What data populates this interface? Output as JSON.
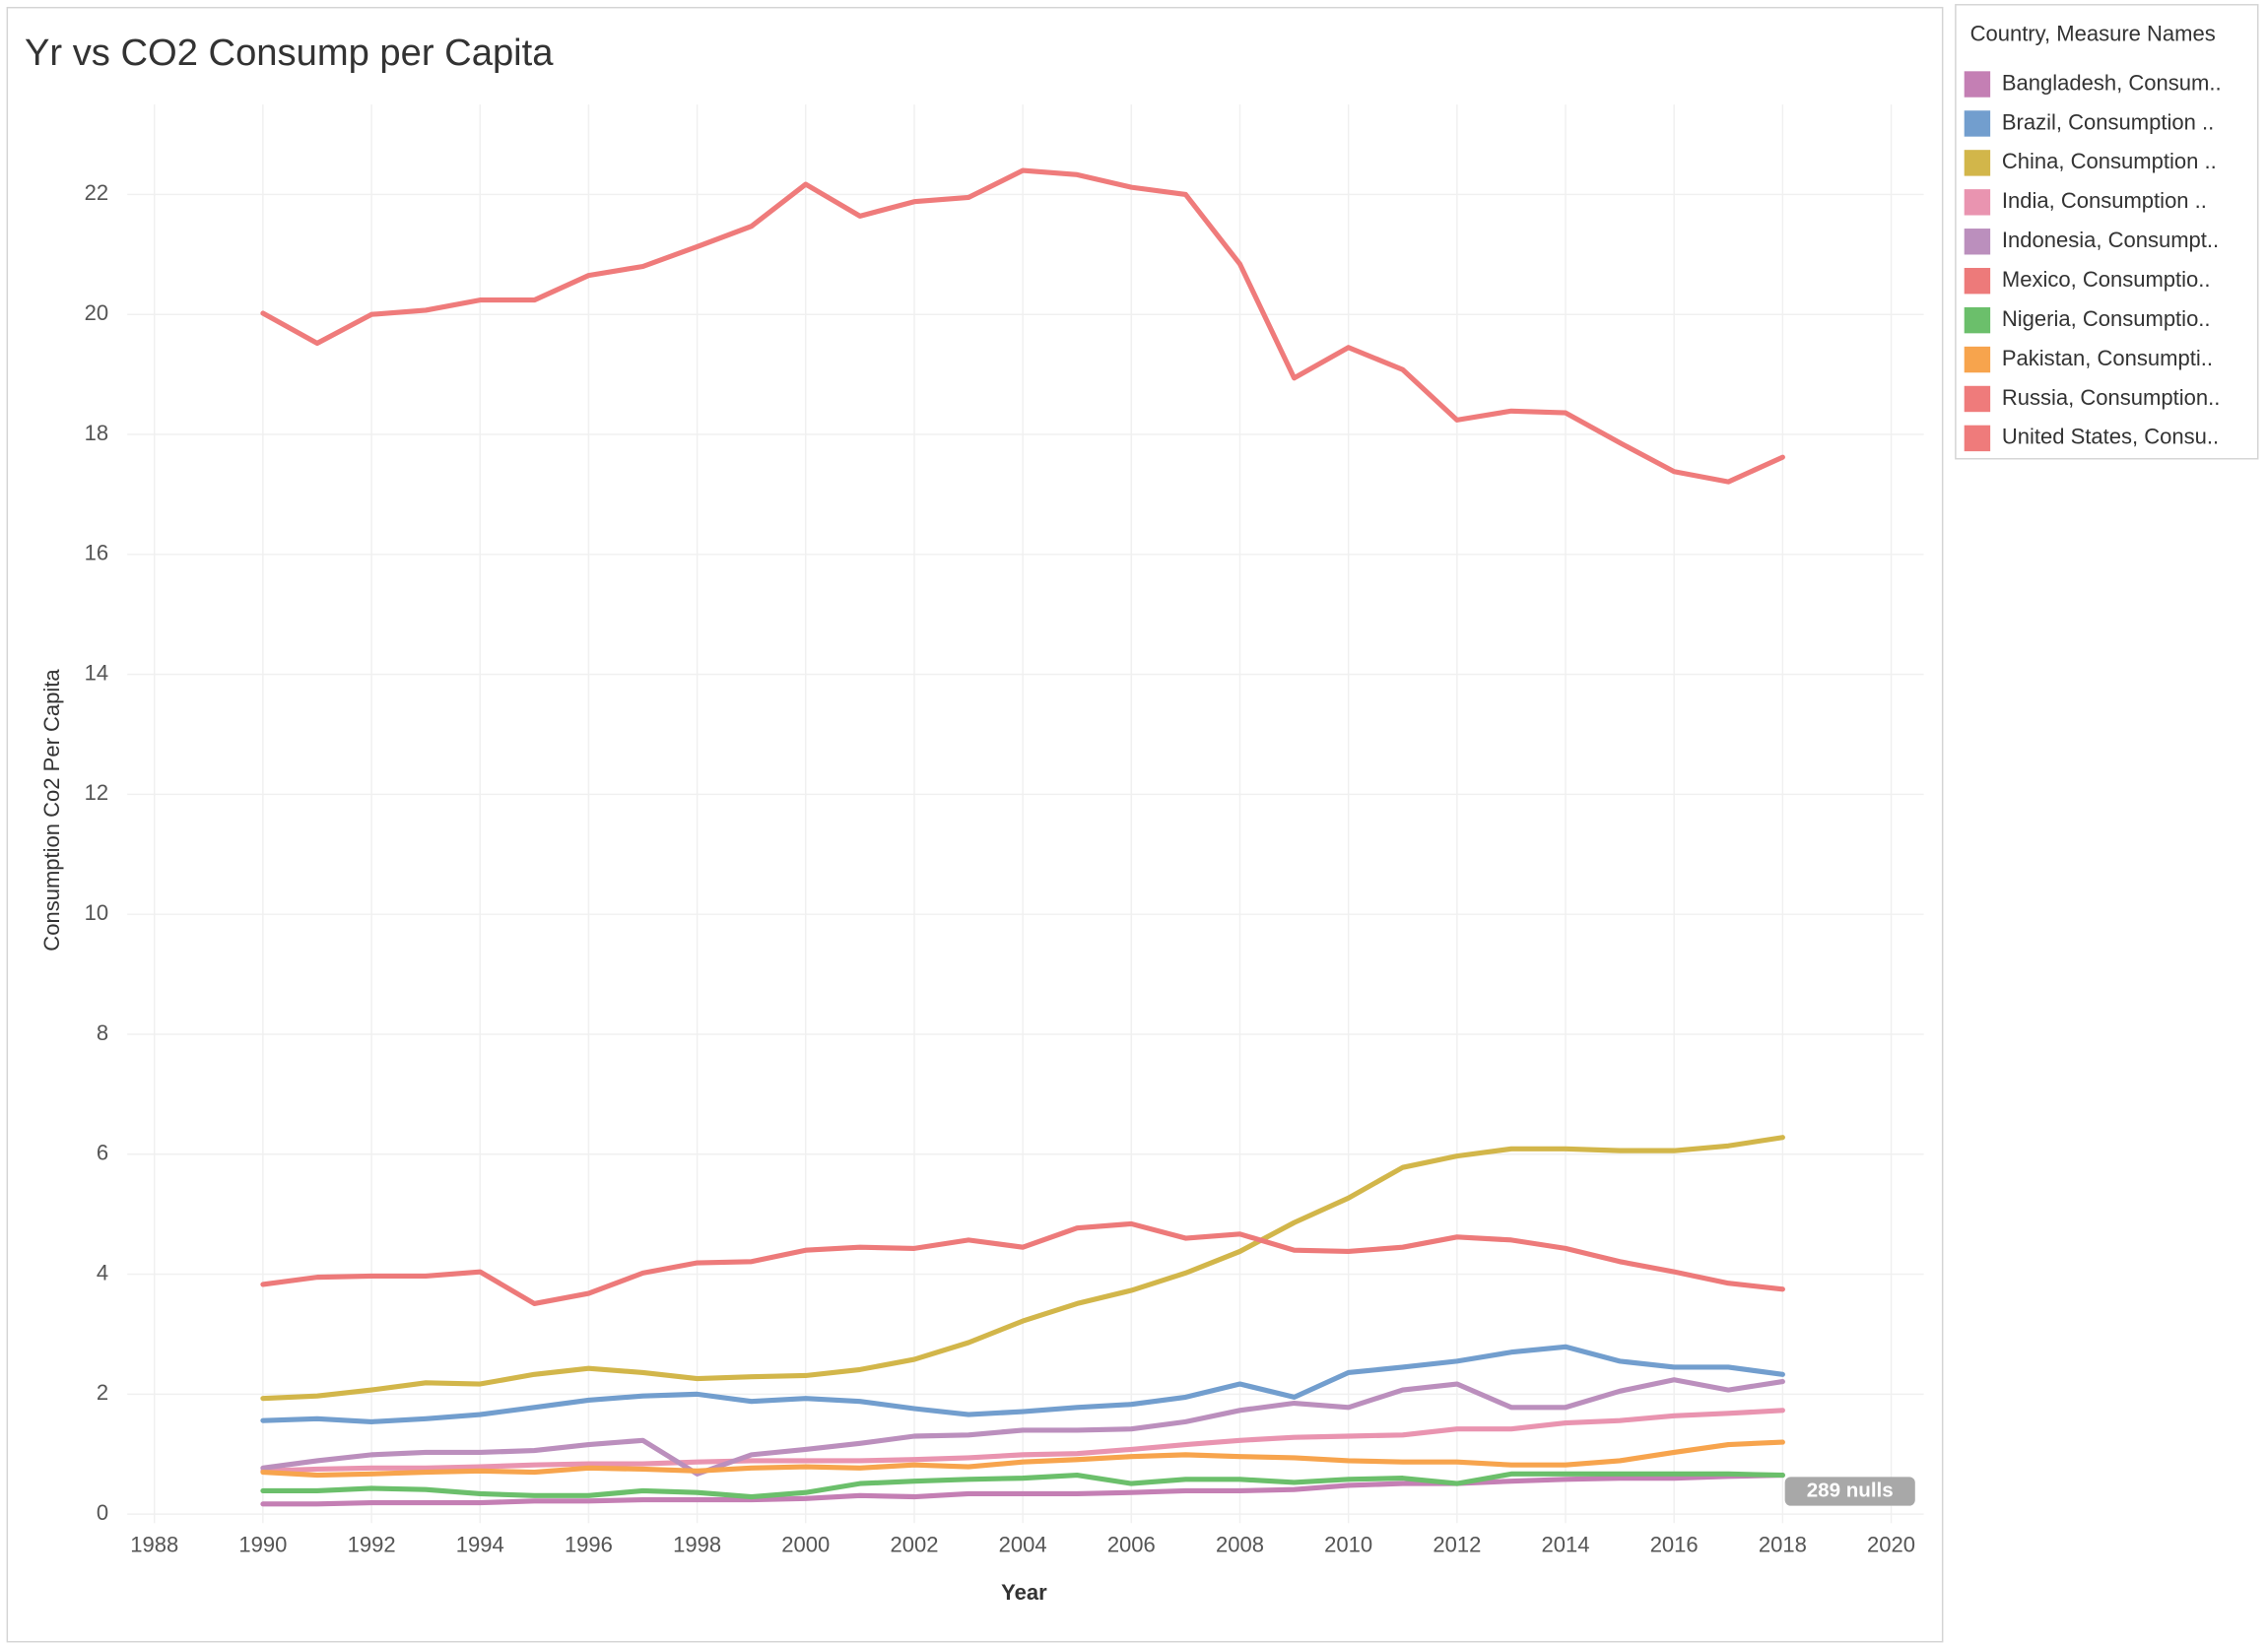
{
  "chart_data": {
    "type": "line",
    "title": "Yr vs CO2 Consump per Capita",
    "x_label": "Year",
    "y_label": "Consumption Co2 Per Capita",
    "legend_title": "Country, Measure Names",
    "legend_position": "right",
    "nulls_indicator": "289 nulls",
    "grid": true,
    "xlim": [
      1987.5,
      2020.6
    ],
    "xticks": [
      1988,
      1990,
      1992,
      1994,
      1996,
      1998,
      2000,
      2002,
      2004,
      2006,
      2008,
      2010,
      2012,
      2014,
      2016,
      2018,
      2020
    ],
    "ylim": [
      -0.15,
      23.5
    ],
    "yticks": [
      0,
      2,
      4,
      6,
      8,
      10,
      12,
      14,
      16,
      18,
      20,
      22
    ],
    "x": [
      1990,
      1991,
      1992,
      1993,
      1994,
      1995,
      1996,
      1997,
      1998,
      1999,
      2000,
      2001,
      2002,
      2003,
      2004,
      2005,
      2006,
      2007,
      2008,
      2009,
      2010,
      2011,
      2012,
      2013,
      2014,
      2015,
      2016,
      2017,
      2018
    ],
    "series": [
      {
        "name": "Bangladesh, Consum..",
        "color": "#c47fb4",
        "values": [
          0.17,
          0.17,
          0.19,
          0.19,
          0.19,
          0.22,
          0.22,
          0.24,
          0.24,
          0.24,
          0.26,
          0.31,
          0.29,
          0.34,
          0.34,
          0.34,
          0.36,
          0.39,
          0.39,
          0.41,
          0.48,
          0.51,
          0.51,
          0.55,
          0.58,
          0.6,
          0.6,
          0.63,
          0.65
        ]
      },
      {
        "name": "Brazil, Consumption ..",
        "color": "#729ece",
        "values": [
          1.56,
          1.59,
          1.54,
          1.59,
          1.66,
          1.78,
          1.9,
          1.97,
          2.0,
          1.88,
          1.93,
          1.88,
          1.76,
          1.66,
          1.71,
          1.78,
          1.83,
          1.95,
          2.17,
          1.95,
          2.36,
          2.45,
          2.55,
          2.7,
          2.79,
          2.55,
          2.45,
          2.45,
          2.33
        ]
      },
      {
        "name": "China, Consumption ..",
        "color": "#d2b64a",
        "values": [
          1.93,
          1.97,
          2.07,
          2.19,
          2.17,
          2.33,
          2.43,
          2.36,
          2.26,
          2.29,
          2.31,
          2.41,
          2.58,
          2.86,
          3.22,
          3.51,
          3.73,
          4.02,
          4.38,
          4.86,
          5.27,
          5.78,
          5.97,
          6.09,
          6.09,
          6.06,
          6.06,
          6.14,
          6.28
        ]
      },
      {
        "name": "India, Consumption ..",
        "color": "#e994b0",
        "values": [
          0.72,
          0.75,
          0.77,
          0.77,
          0.79,
          0.82,
          0.84,
          0.84,
          0.87,
          0.89,
          0.89,
          0.89,
          0.91,
          0.94,
          0.99,
          1.01,
          1.08,
          1.16,
          1.23,
          1.28,
          1.3,
          1.32,
          1.42,
          1.42,
          1.52,
          1.56,
          1.64,
          1.68,
          1.73
        ]
      },
      {
        "name": "Indonesia, Consumpt..",
        "color": "#bb8fbd",
        "values": [
          0.77,
          0.89,
          0.99,
          1.03,
          1.03,
          1.06,
          1.16,
          1.23,
          0.67,
          0.99,
          1.08,
          1.18,
          1.3,
          1.32,
          1.4,
          1.4,
          1.42,
          1.54,
          1.73,
          1.85,
          1.78,
          2.07,
          2.17,
          1.78,
          1.78,
          2.05,
          2.24,
          2.07,
          2.21
        ]
      },
      {
        "name": "Mexico, Consumptio..",
        "color": "#ed7a7a",
        "values": [
          3.83,
          3.95,
          3.97,
          3.97,
          4.04,
          3.51,
          3.68,
          4.02,
          4.19,
          4.21,
          4.4,
          4.45,
          4.43,
          4.57,
          4.45,
          4.77,
          4.84,
          4.6,
          4.67,
          4.4,
          4.38,
          4.45,
          4.62,
          4.57,
          4.43,
          4.21,
          4.04,
          3.85,
          3.75
        ]
      },
      {
        "name": "Nigeria, Consumptio..",
        "color": "#6bbf6b",
        "values": [
          0.39,
          0.39,
          0.43,
          0.41,
          0.34,
          0.31,
          0.31,
          0.39,
          0.36,
          0.29,
          0.36,
          0.51,
          0.55,
          0.58,
          0.6,
          0.65,
          0.51,
          0.58,
          0.58,
          0.53,
          0.58,
          0.6,
          0.51,
          0.67,
          0.67,
          0.67,
          0.67,
          0.67,
          0.65
        ]
      },
      {
        "name": "Pakistan, Consumpti..",
        "color": "#f7a44d",
        "values": [
          0.7,
          0.65,
          0.67,
          0.7,
          0.72,
          0.7,
          0.77,
          0.75,
          0.72,
          0.77,
          0.79,
          0.77,
          0.82,
          0.79,
          0.87,
          0.91,
          0.96,
          0.99,
          0.96,
          0.94,
          0.89,
          0.87,
          0.87,
          0.82,
          0.82,
          0.89,
          1.03,
          1.16,
          1.2
        ]
      },
      {
        "name": "Russia, Consumption..",
        "color": "#ef7b7b",
        "values": [
          null,
          null,
          null,
          null,
          null,
          null,
          null,
          null,
          null,
          null,
          null,
          null,
          null,
          null,
          null,
          null,
          null,
          null,
          null,
          null,
          null,
          null,
          null,
          null,
          null,
          null,
          null,
          null,
          null
        ]
      },
      {
        "name": "United States, Consu..",
        "color": "#ef7b7b",
        "values": [
          20.02,
          19.52,
          20.0,
          20.07,
          20.24,
          20.24,
          20.65,
          20.8,
          21.13,
          21.47,
          22.17,
          21.64,
          21.88,
          21.95,
          22.4,
          22.33,
          22.12,
          22.0,
          20.84,
          18.94,
          19.45,
          19.08,
          18.24,
          18.39,
          18.36,
          17.86,
          17.38,
          17.21,
          17.62
        ]
      }
    ]
  }
}
